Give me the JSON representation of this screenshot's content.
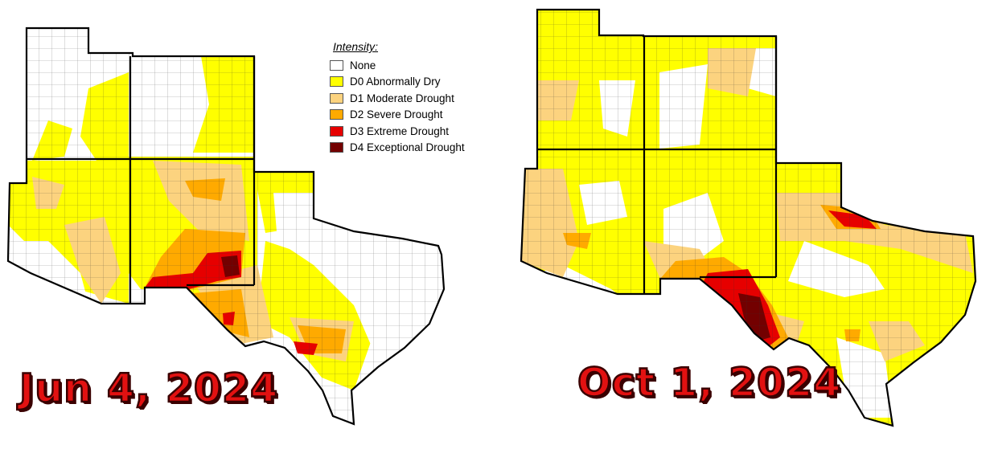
{
  "legend": {
    "title": "Intensity:",
    "items": [
      {
        "label": "None",
        "color": "#ffffff"
      },
      {
        "label": "D0 Abnormally Dry",
        "color": "#ffff00"
      },
      {
        "label": "D1 Moderate Drought",
        "color": "#fcd37f"
      },
      {
        "label": "D2 Severe Drought",
        "color": "#ffaa00"
      },
      {
        "label": "D3 Extreme Drought",
        "color": "#e60000"
      },
      {
        "label": "D4 Exceptional Drought",
        "color": "#730000"
      }
    ]
  },
  "maps": [
    {
      "date_label": "Jun 4, 2024"
    },
    {
      "date_label": "Oct 1, 2024"
    }
  ],
  "colors": {
    "date_label": "#e21111",
    "border": "#000000"
  }
}
